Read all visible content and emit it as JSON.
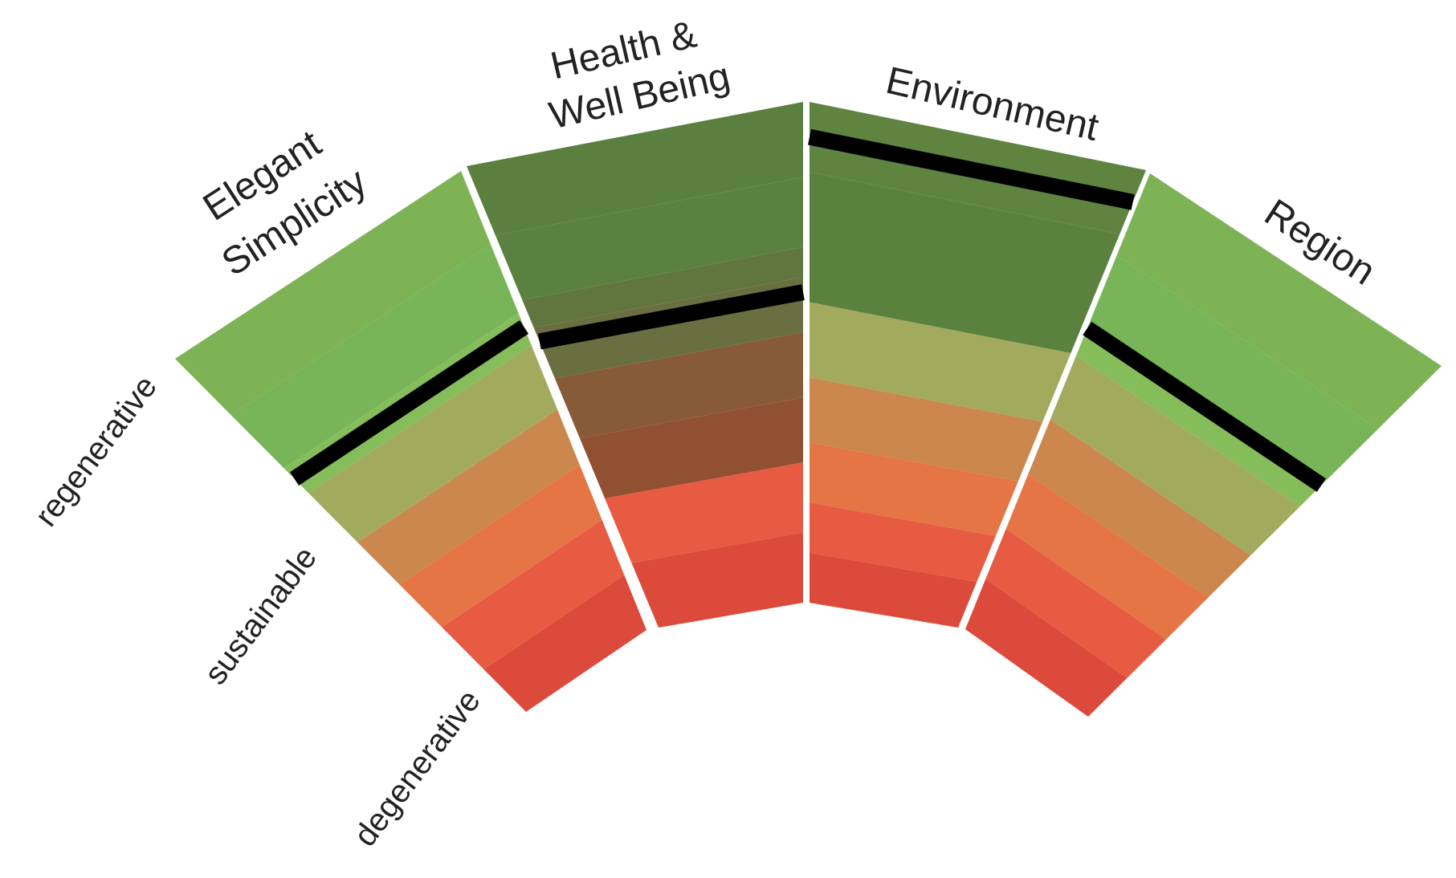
{
  "diagram": {
    "type": "segmented-fan-scale",
    "scale_labels": {
      "top": "regenerative",
      "middle": "sustainable",
      "bottom": "degenerative"
    },
    "band_colors": [
      "#7db354",
      "#78b458",
      "#a2ab5d",
      "#cb874e",
      "#e67545",
      "#e65b42",
      "#dc4a3b"
    ],
    "marker_color": "#000000",
    "segments": [
      {
        "id": "elegant-simplicity",
        "title_lines": [
          "Elegant",
          "Simplicity"
        ],
        "marker_level": 0.34,
        "bands": [
          {
            "to": 0.16,
            "color": "#7db354"
          },
          {
            "to": 0.31,
            "color": "#78b458"
          },
          {
            "to": 0.38,
            "color": "#85bd5a"
          },
          {
            "to": 0.52,
            "color": "#a2ab5d"
          },
          {
            "to": 0.64,
            "color": "#cb874e"
          },
          {
            "to": 0.76,
            "color": "#e67545"
          },
          {
            "to": 0.88,
            "color": "#e65b42"
          },
          {
            "to": 1.0,
            "color": "#dc4a3b"
          }
        ]
      },
      {
        "id": "health-well-being",
        "title_lines": [
          "Health &",
          "Well Being"
        ],
        "marker_level": 0.38,
        "bands": [
          {
            "to": 0.15,
            "color": "#5a7f3e"
          },
          {
            "to": 0.29,
            "color": "#5b8140"
          },
          {
            "to": 0.35,
            "color": "#61753f"
          },
          {
            "to": 0.46,
            "color": "#6a6f41"
          },
          {
            "to": 0.59,
            "color": "#875a38"
          },
          {
            "to": 0.72,
            "color": "#925033"
          },
          {
            "to": 0.86,
            "color": "#e65b42"
          },
          {
            "to": 1.0,
            "color": "#dc4a3b"
          }
        ]
      },
      {
        "id": "environment",
        "title_lines": [
          "Environment"
        ],
        "marker_level": 0.07,
        "bands": [
          {
            "to": 0.14,
            "color": "#5e843f"
          },
          {
            "to": 0.4,
            "color": "#5b813f"
          },
          {
            "to": 0.55,
            "color": "#a2ab5d"
          },
          {
            "to": 0.68,
            "color": "#cb874e"
          },
          {
            "to": 0.8,
            "color": "#e67545"
          },
          {
            "to": 0.9,
            "color": "#e65b42"
          },
          {
            "to": 1.0,
            "color": "#dc4a3b"
          }
        ]
      },
      {
        "id": "region",
        "title_lines": [
          "Region"
        ],
        "marker_level": 0.34,
        "bands": [
          {
            "to": 0.18,
            "color": "#7db354"
          },
          {
            "to": 0.33,
            "color": "#78b458"
          },
          {
            "to": 0.4,
            "color": "#85bd5a"
          },
          {
            "to": 0.54,
            "color": "#a2ab5d"
          },
          {
            "to": 0.66,
            "color": "#cb874e"
          },
          {
            "to": 0.78,
            "color": "#e67545"
          },
          {
            "to": 0.89,
            "color": "#e65b42"
          },
          {
            "to": 1.0,
            "color": "#dc4a3b"
          }
        ]
      }
    ]
  }
}
